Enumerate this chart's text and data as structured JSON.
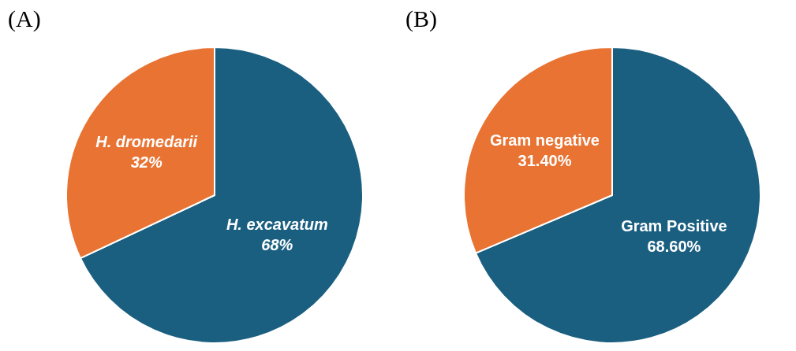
{
  "chart_data": [
    {
      "type": "pie",
      "title": "(A)",
      "categories": [
        "H. excavatum",
        "H. dromedarii"
      ],
      "values": [
        68,
        32
      ],
      "colors": [
        "#1a5f80",
        "#e87333"
      ],
      "value_labels": [
        "68%",
        "32%"
      ],
      "legend": false
    },
    {
      "type": "pie",
      "title": "(B)",
      "categories": [
        "Gram Positive",
        "Gram negative"
      ],
      "values": [
        68.6,
        31.4
      ],
      "colors": [
        "#1a5f80",
        "#e87333"
      ],
      "value_labels": [
        "68.60%",
        "31.40%"
      ],
      "legend": false
    }
  ]
}
